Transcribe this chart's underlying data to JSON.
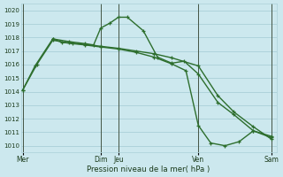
{
  "background_color": "#cce8ee",
  "grid_color": "#aad0d8",
  "line_color": "#2d6e2d",
  "xlabel": "Pression niveau de la mer( hPa )",
  "ylim": [
    1009.5,
    1020.5
  ],
  "yticks": [
    1010,
    1011,
    1012,
    1013,
    1014,
    1015,
    1016,
    1017,
    1018,
    1019,
    1020
  ],
  "xlim": [
    -0.05,
    7.15
  ],
  "vlines": [
    0.0,
    2.2,
    2.7,
    4.95,
    7.0
  ],
  "xtick_positions": [
    0.0,
    2.2,
    2.7,
    4.95,
    7.0
  ],
  "xtick_labels": [
    "Mer",
    "Dim",
    "Jeu",
    "Ven",
    "Sam"
  ],
  "series1": {
    "x": [
      0.0,
      0.35,
      0.85,
      1.3,
      1.75,
      2.0,
      2.2,
      2.45,
      2.7,
      2.95,
      3.4,
      3.8,
      4.2,
      4.55,
      4.95,
      5.5,
      5.95,
      6.5,
      7.0
    ],
    "y": [
      1014.1,
      1015.9,
      1017.9,
      1017.7,
      1017.55,
      1017.45,
      1018.7,
      1019.05,
      1019.5,
      1019.5,
      1018.5,
      1016.55,
      1016.1,
      1016.25,
      1015.3,
      1013.2,
      1012.3,
      1011.1,
      1010.7
    ]
  },
  "series2": {
    "x": [
      0.0,
      0.4,
      0.85,
      1.3,
      1.75,
      2.2,
      2.7,
      3.2,
      3.7,
      4.2,
      4.95,
      5.5,
      5.95,
      6.5,
      7.0
    ],
    "y": [
      1014.1,
      1016.0,
      1017.8,
      1017.6,
      1017.5,
      1017.35,
      1017.2,
      1017.0,
      1016.8,
      1016.5,
      1015.9,
      1013.7,
      1012.5,
      1011.4,
      1010.5
    ]
  },
  "series3": {
    "x": [
      0.85,
      1.1,
      1.4,
      1.75,
      2.2,
      2.7,
      3.2,
      3.7,
      4.2,
      4.6,
      4.95,
      5.3,
      5.7,
      6.1,
      6.5,
      7.0
    ],
    "y": [
      1017.9,
      1017.65,
      1017.55,
      1017.45,
      1017.3,
      1017.15,
      1016.9,
      1016.55,
      1016.05,
      1015.55,
      1011.5,
      1010.2,
      1010.0,
      1010.3,
      1011.1,
      1010.6
    ]
  }
}
